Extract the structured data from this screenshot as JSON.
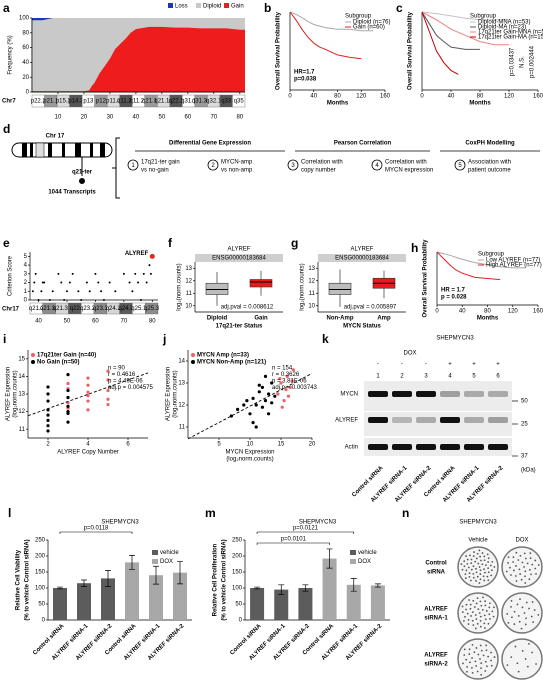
{
  "panels": {
    "a": {
      "label": "a",
      "y_label": "Frequency (%)",
      "legend": [
        "Loss",
        "Diploid",
        "Gain"
      ],
      "colors": [
        "#1a35c4",
        "#c9c9c9",
        "#ee1c1c"
      ],
      "xlim": [
        0,
        82
      ],
      "ylim": [
        0,
        100
      ],
      "xticks": [
        10,
        20,
        30,
        40,
        50,
        60,
        70,
        80
      ],
      "yticks": [
        0,
        20,
        40,
        60,
        80,
        100
      ],
      "x": [
        0,
        4,
        8,
        12,
        16,
        20,
        22,
        23,
        24,
        26,
        28,
        30,
        32,
        34,
        36,
        38,
        40,
        45,
        50,
        55,
        60,
        65,
        70,
        75,
        80,
        82
      ],
      "loss": [
        3,
        3,
        0,
        0,
        0,
        0,
        0,
        0,
        0,
        0,
        0,
        0,
        0,
        0,
        0,
        0,
        0,
        0,
        0,
        0,
        0,
        0,
        0,
        0,
        0,
        0
      ],
      "gain": [
        1,
        1,
        1,
        1,
        1,
        1,
        2,
        8,
        12,
        25,
        35,
        45,
        58,
        65,
        72,
        80,
        85,
        88,
        88,
        87,
        87,
        86,
        86,
        86,
        84,
        84
      ],
      "chromosome": "Chr7",
      "bands": [
        "p22.2",
        "p21.1",
        "p15.3",
        "p14.3",
        "p13",
        "p12",
        "p11.2",
        "q11.21",
        "q11.23",
        "q21.11",
        "q21.13",
        "q22.1",
        "q31.1",
        "q31.31",
        "q32.1",
        "q33",
        "q35"
      ]
    },
    "b": {
      "label": "b",
      "y_label": "Overall Survival Probability",
      "x_label": "Months",
      "xlim": [
        0,
        160
      ],
      "ylim": [
        0,
        1
      ],
      "xticks": [
        0,
        40,
        80,
        120,
        160
      ],
      "legend_title": "Subgroup",
      "series": [
        {
          "name": "Diploid (n=76)",
          "color": "#a8a8a8",
          "x": [
            0,
            10,
            20,
            30,
            40,
            60,
            80,
            100,
            120,
            140
          ],
          "y": [
            1,
            0.97,
            0.93,
            0.88,
            0.84,
            0.8,
            0.78,
            0.78,
            0.76,
            0.76
          ]
        },
        {
          "name": "Gain (n=60)",
          "color": "#e02020",
          "x": [
            0,
            10,
            20,
            30,
            40,
            50,
            60,
            80,
            100,
            120
          ],
          "y": [
            1,
            0.9,
            0.78,
            0.68,
            0.6,
            0.55,
            0.52,
            0.45,
            0.42,
            0.4
          ]
        }
      ],
      "annotations": [
        "HR=1.7",
        "p=0.038"
      ]
    },
    "c": {
      "label": "c",
      "y_label": "Overall Survival Probability",
      "x_label": "Months",
      "xlim": [
        0,
        160
      ],
      "ylim": [
        0,
        1
      ],
      "xticks": [
        0,
        40,
        80,
        120,
        160
      ],
      "legend_title": "Subgroup",
      "series": [
        {
          "name": "Diploid-MNA (n=53)",
          "color": "#c4c4c4",
          "x": [
            0,
            20,
            40,
            60,
            80,
            100,
            120
          ],
          "y": [
            1,
            0.98,
            0.95,
            0.92,
            0.9,
            0.9,
            0.9
          ]
        },
        {
          "name": "Diploid-MA (n=23)",
          "color": "#5a5a5a",
          "x": [
            0,
            10,
            20,
            30,
            40,
            60,
            80
          ],
          "y": [
            1,
            0.85,
            0.7,
            0.62,
            0.55,
            0.52,
            0.52
          ]
        },
        {
          "name": "17q21ter Gain-MNA (n=58)",
          "color": "#f08080",
          "x": [
            0,
            20,
            40,
            60,
            80,
            100,
            120
          ],
          "y": [
            1,
            0.9,
            0.78,
            0.7,
            0.62,
            0.58,
            0.58
          ]
        },
        {
          "name": "17q21ter Gain-MA (n=15)",
          "color": "#c00000",
          "x": [
            0,
            10,
            20,
            30,
            40,
            50
          ],
          "y": [
            1,
            0.75,
            0.5,
            0.35,
            0.25,
            0.2
          ]
        }
      ],
      "annotations": [
        "p=0.03437",
        "N.S.",
        "p=0.002444"
      ]
    },
    "d": {
      "label": "d",
      "chromosome": "Chr 17",
      "region": "q21-ter",
      "transcripts": "1044 Transcripts",
      "headers": [
        "Differential Gene Expression",
        "Pearson Correlation",
        "CoxPH Modelling"
      ],
      "steps": [
        {
          "number": 1,
          "lines": [
            "17q21-ter gain",
            "vs no-gain"
          ]
        },
        {
          "number": 2,
          "lines": [
            "MYCN-amp",
            "vs non-amp"
          ]
        },
        {
          "number": 3,
          "lines": [
            "Correlation with",
            "copy number"
          ]
        },
        {
          "number": 4,
          "lines": [
            "Correlation with",
            "MYCN expression"
          ]
        },
        {
          "number": 5,
          "lines": [
            "Association with",
            "patient outcome"
          ]
        }
      ]
    },
    "e": {
      "label": "e",
      "y_label": "Criterion Score",
      "xlim": [
        37,
        82
      ],
      "ylim": [
        0,
        5.5
      ],
      "xticks": [
        40,
        50,
        60,
        70,
        80
      ],
      "yticks": [
        0,
        1,
        2,
        3,
        4,
        5
      ],
      "x": [
        38,
        38.5,
        39,
        40,
        41,
        41.5,
        42,
        44,
        45,
        47,
        48,
        49,
        50,
        51,
        52,
        54,
        55,
        57,
        58,
        60,
        61,
        62,
        63,
        65,
        67,
        70,
        72,
        73,
        74,
        75,
        76,
        77,
        78,
        79,
        79.5
      ],
      "y": [
        1,
        2,
        3,
        0,
        1,
        2,
        2,
        0,
        1,
        3,
        2,
        0,
        1,
        2,
        3,
        1,
        0,
        2,
        1,
        3,
        2,
        1,
        0,
        2,
        1,
        3,
        2,
        1,
        3,
        2,
        0,
        3,
        2,
        4,
        3
      ],
      "highlight": {
        "name": "ALYREF",
        "x": 80,
        "y": 5,
        "color": "#e0281e"
      },
      "chromosome": "Chr17",
      "bands": [
        "q21.2",
        "q21.31",
        "q21.33",
        "q22",
        "q23.2",
        "q23.3",
        "q24.2",
        "q24.3",
        "q25.1",
        "q25.3"
      ]
    },
    "f": {
      "label": "f",
      "title": "ALYREF",
      "gene": "ENSG00000183684",
      "y_label": "log₂(norm.counts)",
      "ylim": [
        9.5,
        13.5
      ],
      "yticks": [
        10,
        11,
        12,
        13
      ],
      "categories": [
        "Diploid",
        "Gain"
      ],
      "x_label": "17q21-ter Status",
      "colors": [
        "#bdbdbd",
        "#e51c1c"
      ],
      "boxes": [
        {
          "min": 10,
          "q1": 10.9,
          "median": 11.3,
          "q3": 11.8,
          "max": 12.7
        },
        {
          "min": 10.8,
          "q1": 11.5,
          "median": 11.9,
          "q3": 12.1,
          "max": 12.8
        }
      ],
      "annotation": "adj.pval = 0.008612"
    },
    "g": {
      "label": "g",
      "title": "ALYREF",
      "gene": "ENSG00000183684",
      "y_label": "log₂(norm.counts)",
      "ylim": [
        9.5,
        13.5
      ],
      "yticks": [
        10,
        11,
        12,
        13
      ],
      "categories": [
        "Non-Amp",
        "Amp"
      ],
      "x_label": "MYCN Status",
      "colors": [
        "#bdbdbd",
        "#e51c1c"
      ],
      "boxes": [
        {
          "min": 9.9,
          "q1": 10.9,
          "median": 11.3,
          "q3": 11.8,
          "max": 12.9
        },
        {
          "min": 10.6,
          "q1": 11.4,
          "median": 11.8,
          "q3": 12.2,
          "max": 12.8
        }
      ],
      "annotation": "adj.pval = 0.005897"
    },
    "h": {
      "label": "h",
      "y_label": "Overall Survival Probability",
      "x_label": "Months",
      "xlim": [
        0,
        160
      ],
      "ylim": [
        0,
        1
      ],
      "xticks": [
        0,
        40,
        80,
        120,
        160
      ],
      "legend_title": "Subgroup",
      "series": [
        {
          "name": "Low ALYREF (n=77)",
          "color": "#a8a8a8",
          "x": [
            0,
            20,
            40,
            60,
            80,
            100,
            120,
            140
          ],
          "y": [
            1,
            0.94,
            0.86,
            0.8,
            0.76,
            0.72,
            0.7,
            0.7
          ]
        },
        {
          "name": "High ALYREF (n=77)",
          "color": "#e02020",
          "x": [
            0,
            10,
            20,
            30,
            40,
            60,
            80,
            100
          ],
          "y": [
            1,
            0.88,
            0.76,
            0.66,
            0.6,
            0.52,
            0.5,
            0.48
          ]
        }
      ],
      "annotations": [
        "HR = 1.7",
        "p = 0.028"
      ]
    },
    "i": {
      "label": "i",
      "x_label": "ALYREF Copy Number",
      "y_label": [
        "ALYREF Expression",
        "(log₂norm.counts)"
      ],
      "xlim": [
        1,
        7
      ],
      "ylim": [
        10.5,
        15.5
      ],
      "xticks": [
        2,
        4,
        6
      ],
      "yticks": [
        11,
        12,
        13,
        14,
        15
      ],
      "series": [
        {
          "name": "17q21ter Gain (n=40)",
          "color": "#f06060",
          "x": [
            3,
            3,
            3,
            3,
            4,
            4,
            4,
            4,
            4,
            5,
            5,
            5,
            5,
            3,
            4,
            5
          ],
          "y": [
            12.2,
            12.8,
            13.3,
            12.5,
            12.1,
            12.9,
            13.5,
            13.9,
            12.6,
            12.7,
            13.2,
            13.8,
            12.4,
            13.6,
            13.1,
            14.3
          ]
        },
        {
          "name": "No Gain (n=50)",
          "color": "#000000",
          "x": [
            2,
            2,
            2,
            2,
            2,
            2,
            2,
            3,
            3,
            3,
            3,
            3,
            3,
            2,
            3
          ],
          "y": [
            11.2,
            11.8,
            12.1,
            12.6,
            13,
            11.5,
            13.4,
            11.9,
            12.3,
            12.8,
            13.2,
            11.4,
            14.1,
            10.9,
            12
          ]
        }
      ],
      "stats": [
        "n = 90",
        "r = 0.4616",
        "p = 4.49E-06",
        "adj.p = 0.004575"
      ]
    },
    "j": {
      "label": "j",
      "x_label": "MYCN Expression",
      "x_sublabel": "(log₂norm.counts)",
      "y_label": [
        "ALYREF Expression",
        "(log₂norm.counts)"
      ],
      "xlim": [
        0,
        20
      ],
      "ylim": [
        10.5,
        14.5
      ],
      "xticks": [
        5,
        10,
        15,
        20
      ],
      "yticks": [
        11,
        12,
        13,
        14
      ],
      "series": [
        {
          "name": "MYCN Amp (n=33)",
          "color": "#f06060",
          "x": [
            14.5,
            15,
            15.5,
            16,
            16.5,
            17,
            15.2,
            16.2,
            14.8,
            15.8,
            16.8
          ],
          "y": [
            12.5,
            13,
            12.2,
            13.3,
            12.8,
            13.6,
            11.9,
            12.4,
            13.2,
            12.7,
            13.1
          ]
        },
        {
          "name": "MYCN Non-Amp (n=121)",
          "color": "#000000",
          "x": [
            7,
            8,
            9,
            10,
            10.5,
            11,
            11.5,
            12,
            12,
            12.5,
            13,
            13,
            13.5,
            14,
            9.5,
            10.5,
            11.5,
            12.5,
            13.5,
            11
          ],
          "y": [
            11.5,
            11.8,
            12,
            11.6,
            12.3,
            12,
            12.6,
            11.9,
            12.8,
            12.2,
            12.5,
            11.6,
            13,
            12.4,
            12.2,
            11.2,
            12.9,
            13.3,
            12.1,
            11
          ]
        }
      ],
      "stats": [
        "n = 154",
        "r = 0.3626",
        "p = 3.81E-06",
        "adj.p = 0.003743"
      ]
    },
    "k": {
      "label": "k",
      "title": "SHEPMYCN3",
      "treatment": "DOX",
      "dox": [
        "-",
        "-",
        "-",
        "+",
        "+",
        "+"
      ],
      "lanes": [
        1,
        2,
        3,
        4,
        5,
        6
      ],
      "proteins": [
        "MYCN",
        "ALYREF",
        "Actin"
      ],
      "markers": [
        50,
        25,
        37
      ],
      "unit": "(kDa)",
      "samples": [
        "Control siRNA",
        "ALYREF siRNA-1",
        "ALYREF siRNA-2",
        "Control siRNA",
        "ALYREF siRNA-1",
        "ALYREF siRNA-2"
      ]
    },
    "l": {
      "label": "l",
      "title": "SHEPMYCN3",
      "y_label": [
        "Relative Cell Viability",
        "(% to vehicle Control siRNA)"
      ],
      "ylim": [
        0,
        250
      ],
      "yticks": [
        0,
        50,
        100,
        150,
        200,
        250
      ],
      "categories": [
        "Control siRNA",
        "ALYREF siRNA-1",
        "ALYREF siRNA-2",
        "Control siRNA",
        "ALYREF siRNA-1",
        "ALYREF siRNA-2"
      ],
      "values": [
        100,
        115,
        130,
        180,
        140,
        148
      ],
      "errors": [
        3,
        10,
        25,
        22,
        28,
        35
      ],
      "legend": [
        "vehicle",
        "DOX"
      ],
      "colors": [
        "#5c5c5c",
        "#a8a8a8"
      ],
      "p_values": [
        "p=0.0118"
      ]
    },
    "m": {
      "label": "m",
      "title": "SHEPMYCN3",
      "y_label": [
        "Relative Cell Proliferation",
        "(% to vehicle Control siRNA)"
      ],
      "ylim": [
        0,
        250
      ],
      "yticks": [
        0,
        50,
        100,
        150,
        200,
        250
      ],
      "categories": [
        "Control siRNA",
        "ALYREF siRNA-1",
        "ALYREF siRNA-2",
        "Control siRNA",
        "ALYREF siRNA-1",
        "ALYREF siRNA-2"
      ],
      "values": [
        100,
        95,
        100,
        192,
        110,
        108
      ],
      "errors": [
        3,
        15,
        10,
        30,
        20,
        5
      ],
      "legend": [
        "vehicle",
        "DOX"
      ],
      "colors": [
        "#5c5c5c",
        "#a8a8a8"
      ],
      "p_values": [
        "p=0.0121",
        "p=0.0101"
      ]
    },
    "n": {
      "label": "n",
      "title": "SHEPMYCN3",
      "columns": [
        "Vehicle",
        "DOX"
      ],
      "rows": [
        [
          "Control",
          "siRNA"
        ],
        [
          "ALYREF",
          "siRNA-1"
        ],
        [
          "ALYREF",
          "siRNA-2"
        ]
      ]
    }
  }
}
